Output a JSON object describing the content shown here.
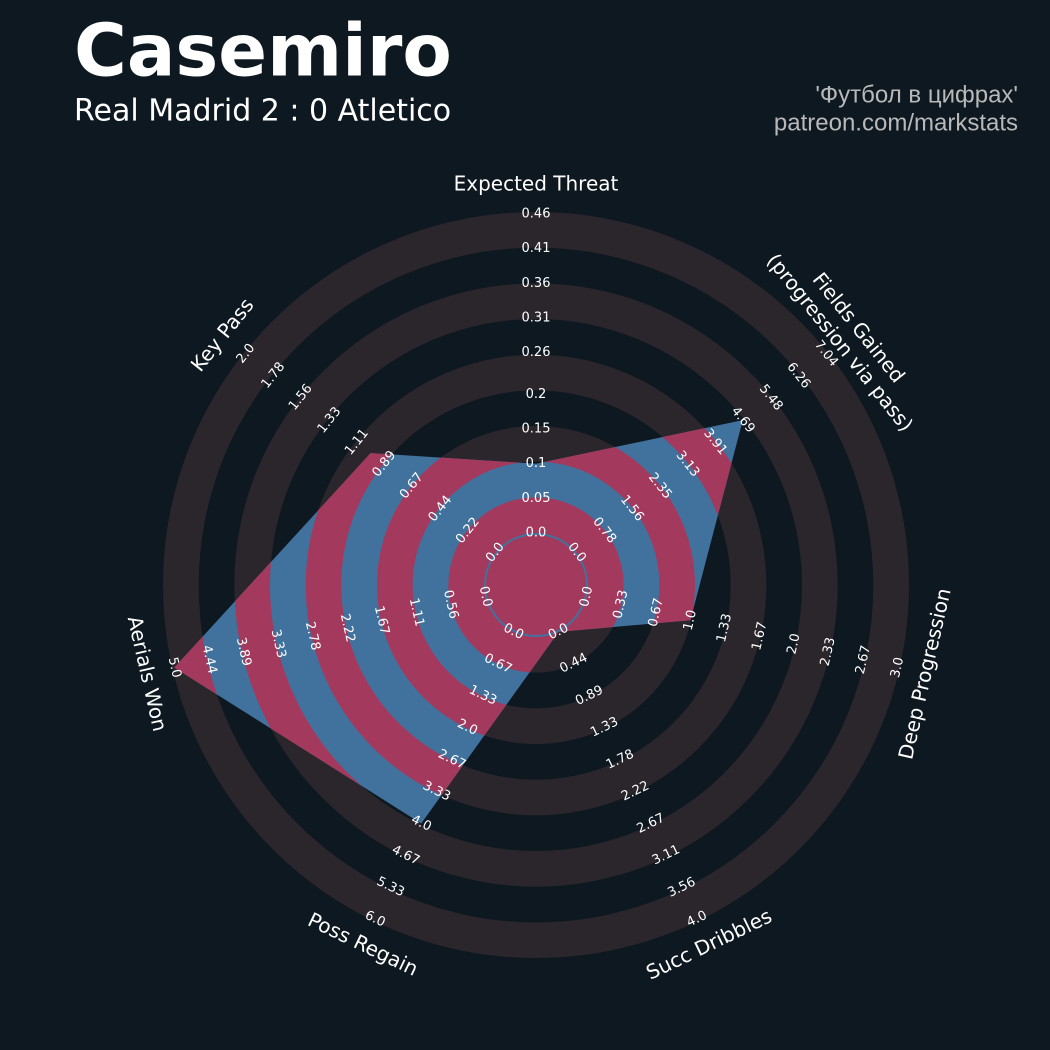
{
  "chart_data": {
    "type": "radar",
    "title": "Casemiro",
    "subtitle": "Real Madrid 2 : 0 Atletico",
    "credits": [
      "'Футбол в цифрах'",
      "patreon.com/markstats"
    ],
    "categories": [
      "Expected Threat",
      "Fields Gained\n(progression via pass)",
      "Deep Progression",
      "Succ Dribbles",
      "Poss Regain",
      "Aerials Won",
      "Key Pass"
    ],
    "values": [
      0.1,
      4.69,
      1.0,
      0.0,
      4.0,
      5.0,
      1.0
    ],
    "rlim": [
      [
        0,
        0.46
      ],
      [
        0,
        7.04
      ],
      [
        0,
        3.0
      ],
      [
        0,
        4.0
      ],
      [
        0,
        6.0
      ],
      [
        0,
        5.0
      ],
      [
        0,
        2.0
      ]
    ],
    "rticks": [
      [
        {
          "value": 0,
          "label": "0.0"
        },
        0.05,
        0.1,
        0.15,
        0.2,
        0.26,
        0.31,
        0.36,
        0.41,
        0.46
      ],
      [
        {
          "value": 0,
          "label": "0.0"
        },
        0.78,
        1.56,
        2.35,
        3.13,
        3.91,
        4.69,
        5.48,
        6.26,
        7.04
      ],
      [
        {
          "value": 0,
          "label": "0.0"
        },
        0.33,
        0.67,
        {
          "value": 1,
          "label": "1.0"
        },
        1.33,
        1.67,
        {
          "value": 2,
          "label": "2.0"
        },
        2.33,
        2.67,
        {
          "value": 3,
          "label": "3.0"
        }
      ],
      [
        {
          "value": 0,
          "label": "0.0"
        },
        0.44,
        0.89,
        1.33,
        1.78,
        2.22,
        2.67,
        3.11,
        3.56,
        {
          "value": 4,
          "label": "4.0"
        }
      ],
      [
        {
          "value": 0,
          "label": "0.0"
        },
        0.67,
        1.33,
        {
          "value": 2,
          "label": "2.0"
        },
        2.67,
        3.33,
        {
          "value": 4,
          "label": "4.0"
        },
        4.67,
        5.33,
        {
          "value": 6,
          "label": "6.0"
        }
      ],
      [
        {
          "value": 0,
          "label": "0.0"
        },
        0.56,
        1.11,
        1.67,
        2.22,
        2.78,
        3.33,
        3.89,
        4.44,
        {
          "value": 5,
          "label": "5.0"
        }
      ],
      [
        {
          "value": 0,
          "label": "0.0"
        },
        0.22,
        0.44,
        0.67,
        0.89,
        1.11,
        1.33,
        1.56,
        1.78,
        {
          "value": 2,
          "label": "2.0"
        }
      ]
    ],
    "band_color": "#2a262c",
    "fill_color": "#41729d",
    "highlight_color": "#a33a5e",
    "background": "#0e1820"
  }
}
